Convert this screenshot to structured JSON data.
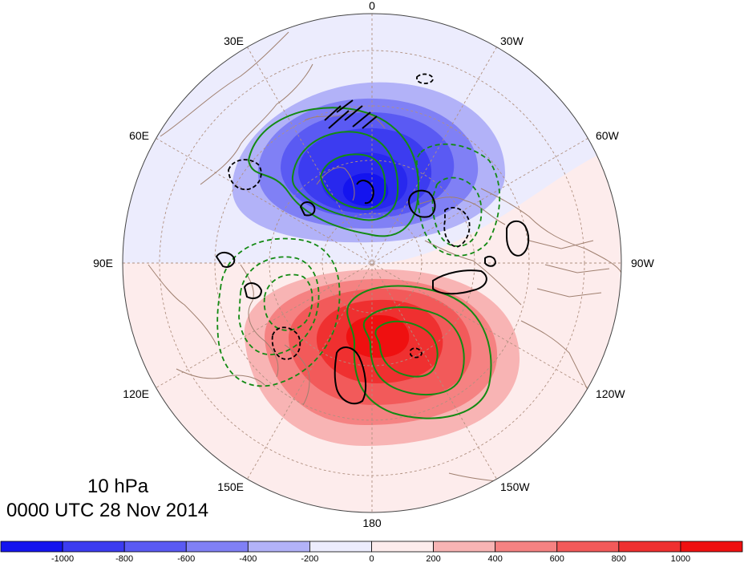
{
  "map": {
    "level_label": "10 hPa",
    "time_label": "0000 UTC 28 Nov 2014",
    "projection": "north-polar-stereographic",
    "longitude_labels": [
      "0",
      "30W",
      "60W",
      "90W",
      "120W",
      "150W",
      "180",
      "150E",
      "120E",
      "90E",
      "60E",
      "30E"
    ]
  },
  "colorbar": {
    "tick_labels": [
      "-1000",
      "-800",
      "-600",
      "-400",
      "-200",
      "0",
      "200",
      "400",
      "600",
      "800",
      "1000"
    ],
    "colors": [
      "#1414ef",
      "#3c3cf0",
      "#5a5af3",
      "#8080f5",
      "#b2b2f8",
      "#ececfd",
      "#fdecec",
      "#f8b4b4",
      "#f58282",
      "#f25a5a",
      "#ef3030",
      "#ef1010"
    ]
  },
  "colors": {
    "negative_fill": "#4040f2",
    "positive_fill": "#f03c3c",
    "green_contour": "#138a13",
    "black_contour": "#000000",
    "coastline": "#a08070",
    "graticule": "#b09080"
  }
}
